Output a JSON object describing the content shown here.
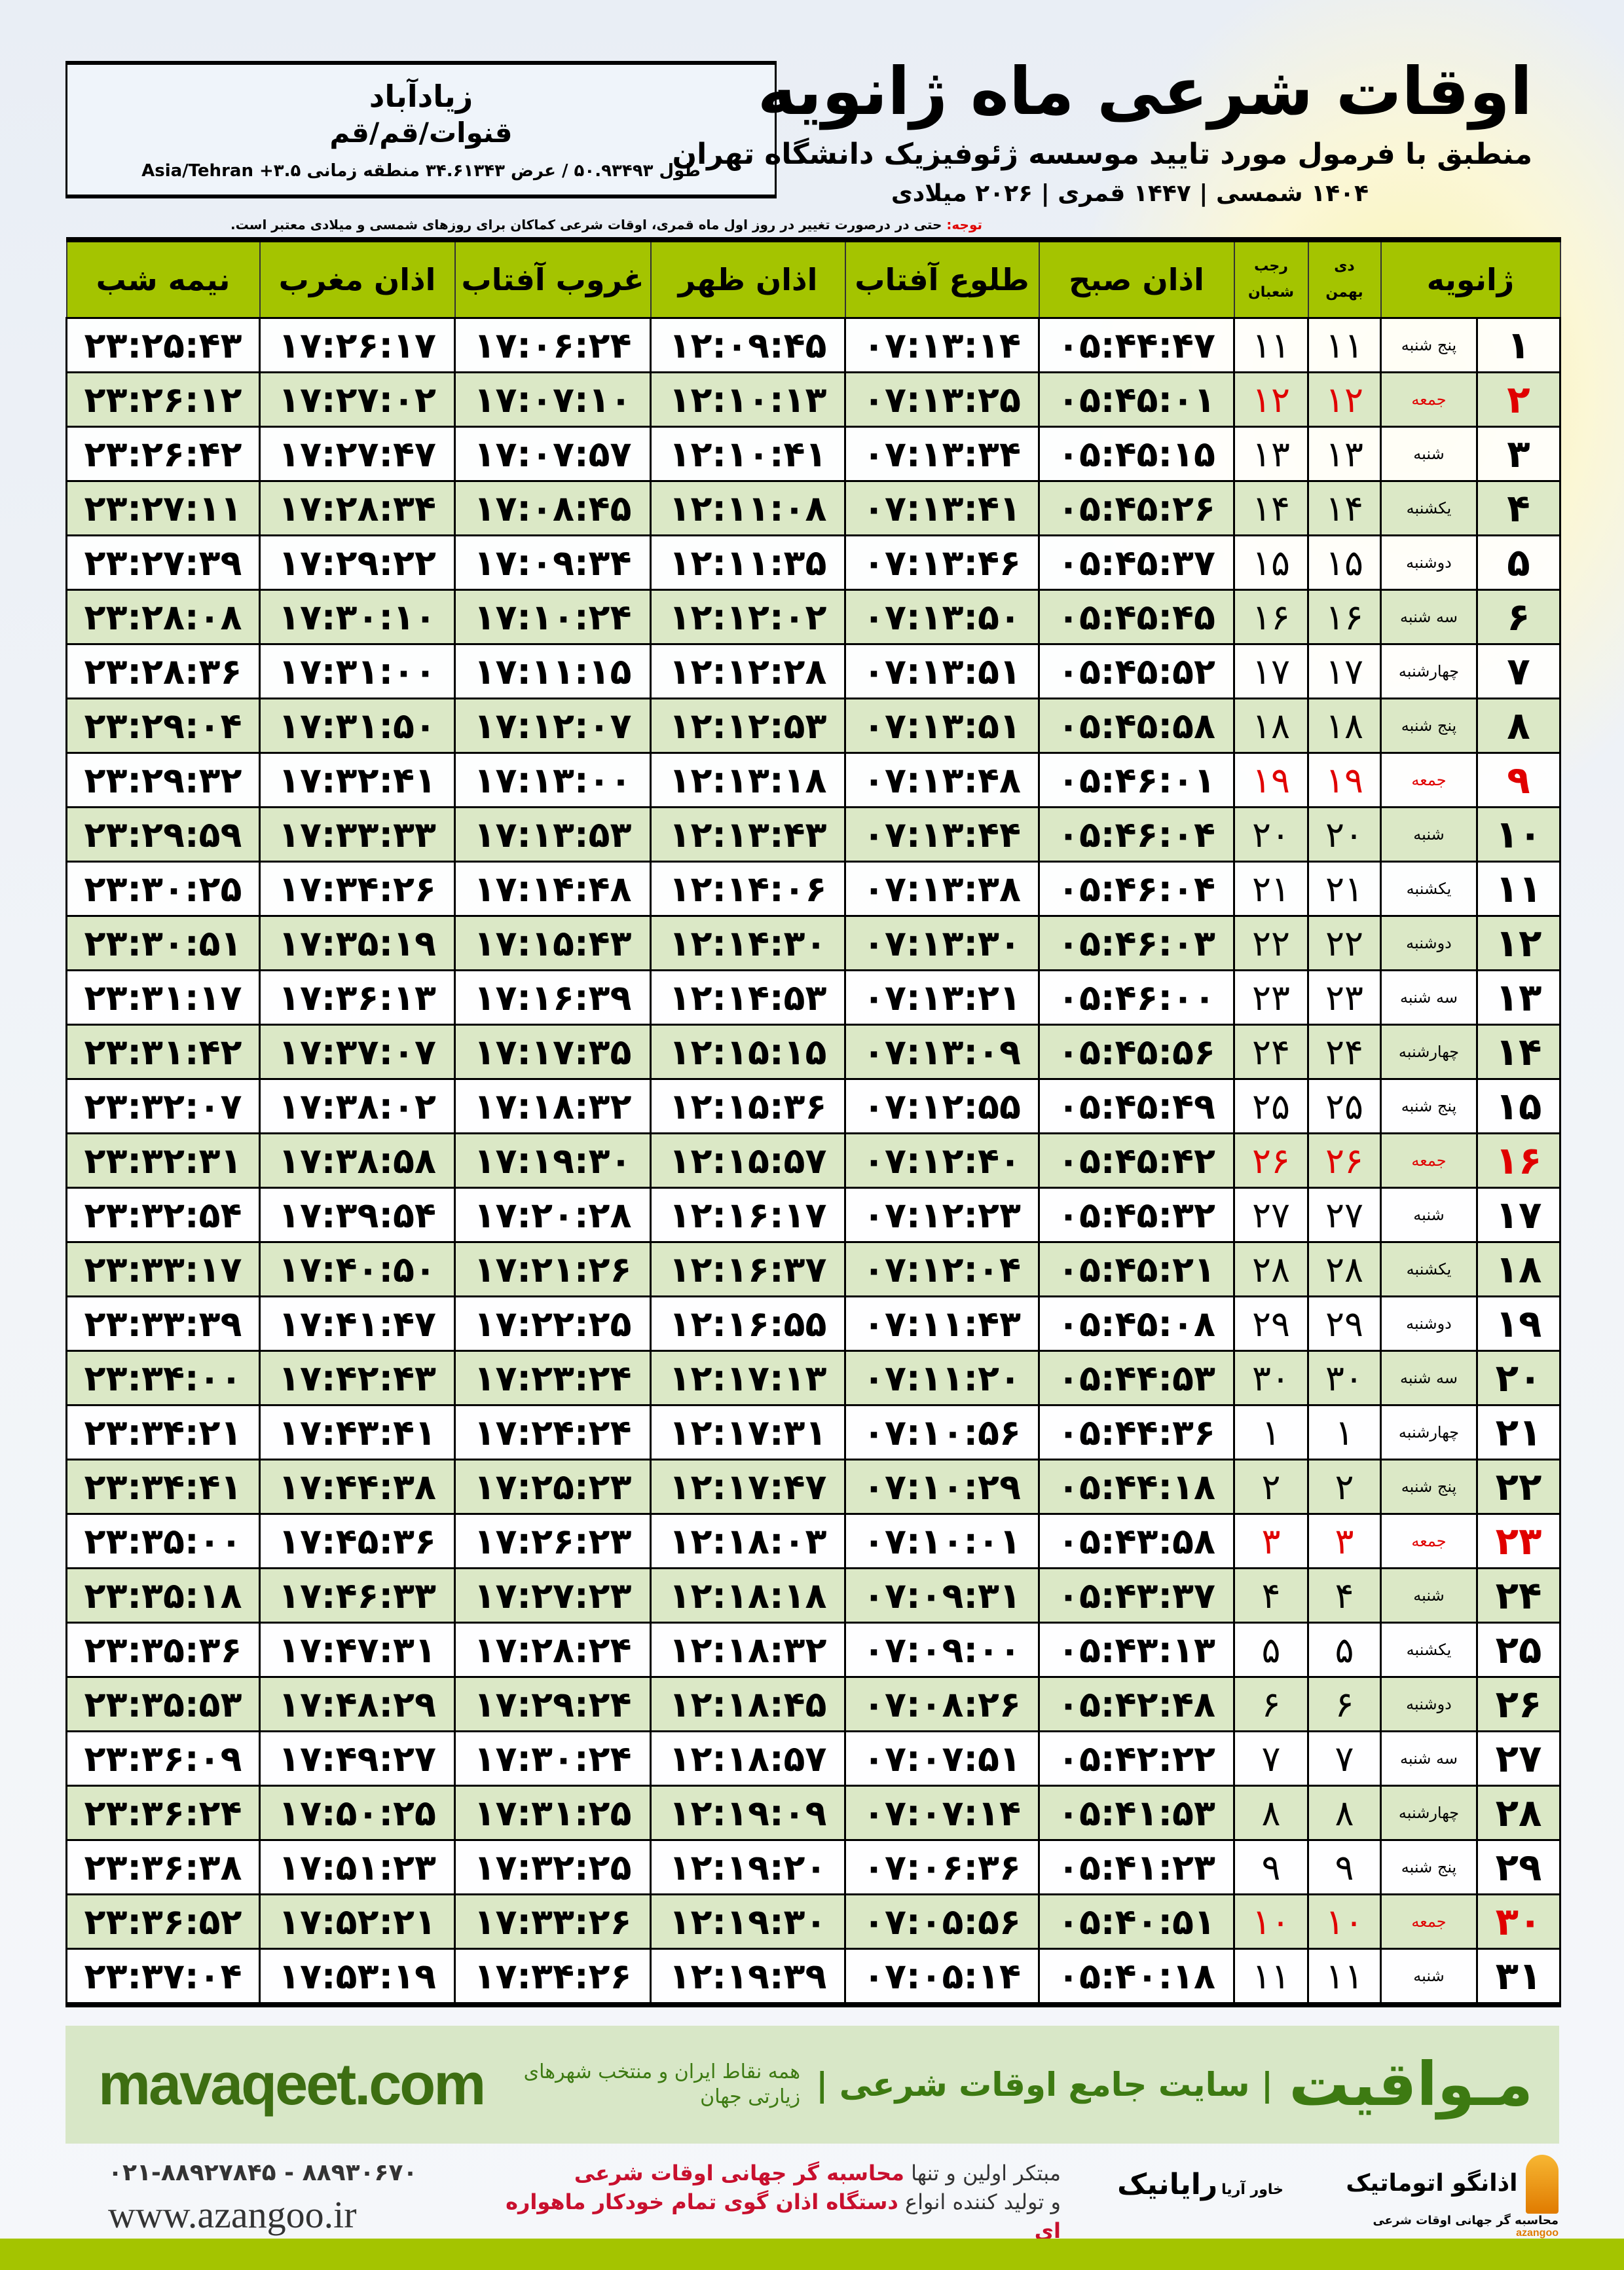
{
  "header": {
    "title": "اوقات شرعی ماه ژانویه",
    "subtitle": "منطبق با فرمول مورد تایید موسسه ژئوفیزیک دانشگاه تهران",
    "dateline": "۱۴۰۴ شمسی | ۱۴۴۷ قمری | ۲۰۲۶ میلادی"
  },
  "location": {
    "city": "زیادآباد",
    "region": "قنوات/قم/قم",
    "coords": "طول ۵۰.۹۳۴۹۳ / عرض ۳۴.۶۱۳۴۳ منطقه زمانی ۳.۵+ Asia/Tehran"
  },
  "note": {
    "label": "توجه:",
    "text": " حتی در درصورت تغییر در روز اول ماه قمری، اوقات شرعی کماکان برای روزهای شمسی و میلادی معتبر است."
  },
  "columns": {
    "day": "ژانویه",
    "shamsi_top": "دی",
    "shamsi_bottom": "بهمن",
    "qamari_top": "رجب",
    "qamari_bottom": "شعبان",
    "sobh": "اذان صبح",
    "tolu": "طلوع آفتاب",
    "zohr": "اذان ظهر",
    "ghorub": "غروب آفتاب",
    "maghreb": "اذان مغرب",
    "nime": "نیمه شب"
  },
  "colors": {
    "header_green": "#a4c400",
    "row_green": "#dbe8c6",
    "friday_red": "#e00000",
    "brand_green": "#3d7a12"
  },
  "rows": [
    [
      "۱",
      "پنج شنبه",
      "۱۱",
      "۱۱",
      "۰۵:۴۴:۴۷",
      "۰۷:۱۳:۱۴",
      "۱۲:۰۹:۴۵",
      "۱۷:۰۶:۲۴",
      "۱۷:۲۶:۱۷",
      "۲۳:۲۵:۴۳"
    ],
    [
      "۲",
      "جمعه",
      "۱۲",
      "۱۲",
      "۰۵:۴۵:۰۱",
      "۰۷:۱۳:۲۵",
      "۱۲:۱۰:۱۳",
      "۱۷:۰۷:۱۰",
      "۱۷:۲۷:۰۲",
      "۲۳:۲۶:۱۲"
    ],
    [
      "۳",
      "شنبه",
      "۱۳",
      "۱۳",
      "۰۵:۴۵:۱۵",
      "۰۷:۱۳:۳۴",
      "۱۲:۱۰:۴۱",
      "۱۷:۰۷:۵۷",
      "۱۷:۲۷:۴۷",
      "۲۳:۲۶:۴۲"
    ],
    [
      "۴",
      "یکشنبه",
      "۱۴",
      "۱۴",
      "۰۵:۴۵:۲۶",
      "۰۷:۱۳:۴۱",
      "۱۲:۱۱:۰۸",
      "۱۷:۰۸:۴۵",
      "۱۷:۲۸:۳۴",
      "۲۳:۲۷:۱۱"
    ],
    [
      "۵",
      "دوشنبه",
      "۱۵",
      "۱۵",
      "۰۵:۴۵:۳۷",
      "۰۷:۱۳:۴۶",
      "۱۲:۱۱:۳۵",
      "۱۷:۰۹:۳۴",
      "۱۷:۲۹:۲۲",
      "۲۳:۲۷:۳۹"
    ],
    [
      "۶",
      "سه شنبه",
      "۱۶",
      "۱۶",
      "۰۵:۴۵:۴۵",
      "۰۷:۱۳:۵۰",
      "۱۲:۱۲:۰۲",
      "۱۷:۱۰:۲۴",
      "۱۷:۳۰:۱۰",
      "۲۳:۲۸:۰۸"
    ],
    [
      "۷",
      "چهارشنبه",
      "۱۷",
      "۱۷",
      "۰۵:۴۵:۵۲",
      "۰۷:۱۳:۵۱",
      "۱۲:۱۲:۲۸",
      "۱۷:۱۱:۱۵",
      "۱۷:۳۱:۰۰",
      "۲۳:۲۸:۳۶"
    ],
    [
      "۸",
      "پنج شنبه",
      "۱۸",
      "۱۸",
      "۰۵:۴۵:۵۸",
      "۰۷:۱۳:۵۱",
      "۱۲:۱۲:۵۳",
      "۱۷:۱۲:۰۷",
      "۱۷:۳۱:۵۰",
      "۲۳:۲۹:۰۴"
    ],
    [
      "۹",
      "جمعه",
      "۱۹",
      "۱۹",
      "۰۵:۴۶:۰۱",
      "۰۷:۱۳:۴۸",
      "۱۲:۱۳:۱۸",
      "۱۷:۱۳:۰۰",
      "۱۷:۳۲:۴۱",
      "۲۳:۲۹:۳۲"
    ],
    [
      "۱۰",
      "شنبه",
      "۲۰",
      "۲۰",
      "۰۵:۴۶:۰۴",
      "۰۷:۱۳:۴۴",
      "۱۲:۱۳:۴۳",
      "۱۷:۱۳:۵۳",
      "۱۷:۳۳:۳۳",
      "۲۳:۲۹:۵۹"
    ],
    [
      "۱۱",
      "یکشنبه",
      "۲۱",
      "۲۱",
      "۰۵:۴۶:۰۴",
      "۰۷:۱۳:۳۸",
      "۱۲:۱۴:۰۶",
      "۱۷:۱۴:۴۸",
      "۱۷:۳۴:۲۶",
      "۲۳:۳۰:۲۵"
    ],
    [
      "۱۲",
      "دوشنبه",
      "۲۲",
      "۲۲",
      "۰۵:۴۶:۰۳",
      "۰۷:۱۳:۳۰",
      "۱۲:۱۴:۳۰",
      "۱۷:۱۵:۴۳",
      "۱۷:۳۵:۱۹",
      "۲۳:۳۰:۵۱"
    ],
    [
      "۱۳",
      "سه شنبه",
      "۲۳",
      "۲۳",
      "۰۵:۴۶:۰۰",
      "۰۷:۱۳:۲۱",
      "۱۲:۱۴:۵۳",
      "۱۷:۱۶:۳۹",
      "۱۷:۳۶:۱۳",
      "۲۳:۳۱:۱۷"
    ],
    [
      "۱۴",
      "چهارشنبه",
      "۲۴",
      "۲۴",
      "۰۵:۴۵:۵۶",
      "۰۷:۱۳:۰۹",
      "۱۲:۱۵:۱۵",
      "۱۷:۱۷:۳۵",
      "۱۷:۳۷:۰۷",
      "۲۳:۳۱:۴۲"
    ],
    [
      "۱۵",
      "پنج شنبه",
      "۲۵",
      "۲۵",
      "۰۵:۴۵:۴۹",
      "۰۷:۱۲:۵۵",
      "۱۲:۱۵:۳۶",
      "۱۷:۱۸:۳۲",
      "۱۷:۳۸:۰۲",
      "۲۳:۳۲:۰۷"
    ],
    [
      "۱۶",
      "جمعه",
      "۲۶",
      "۲۶",
      "۰۵:۴۵:۴۲",
      "۰۷:۱۲:۴۰",
      "۱۲:۱۵:۵۷",
      "۱۷:۱۹:۳۰",
      "۱۷:۳۸:۵۸",
      "۲۳:۳۲:۳۱"
    ],
    [
      "۱۷",
      "شنبه",
      "۲۷",
      "۲۷",
      "۰۵:۴۵:۳۲",
      "۰۷:۱۲:۲۳",
      "۱۲:۱۶:۱۷",
      "۱۷:۲۰:۲۸",
      "۱۷:۳۹:۵۴",
      "۲۳:۳۲:۵۴"
    ],
    [
      "۱۸",
      "یکشنبه",
      "۲۸",
      "۲۸",
      "۰۵:۴۵:۲۱",
      "۰۷:۱۲:۰۴",
      "۱۲:۱۶:۳۷",
      "۱۷:۲۱:۲۶",
      "۱۷:۴۰:۵۰",
      "۲۳:۳۳:۱۷"
    ],
    [
      "۱۹",
      "دوشنبه",
      "۲۹",
      "۲۹",
      "۰۵:۴۵:۰۸",
      "۰۷:۱۱:۴۳",
      "۱۲:۱۶:۵۵",
      "۱۷:۲۲:۲۵",
      "۱۷:۴۱:۴۷",
      "۲۳:۳۳:۳۹"
    ],
    [
      "۲۰",
      "سه شنبه",
      "۳۰",
      "۳۰",
      "۰۵:۴۴:۵۳",
      "۰۷:۱۱:۲۰",
      "۱۲:۱۷:۱۳",
      "۱۷:۲۳:۲۴",
      "۱۷:۴۲:۴۳",
      "۲۳:۳۴:۰۰"
    ],
    [
      "۲۱",
      "چهارشنبه",
      "۱",
      "۱",
      "۰۵:۴۴:۳۶",
      "۰۷:۱۰:۵۶",
      "۱۲:۱۷:۳۱",
      "۱۷:۲۴:۲۴",
      "۱۷:۴۳:۴۱",
      "۲۳:۳۴:۲۱"
    ],
    [
      "۲۲",
      "پنج شنبه",
      "۲",
      "۲",
      "۰۵:۴۴:۱۸",
      "۰۷:۱۰:۲۹",
      "۱۲:۱۷:۴۷",
      "۱۷:۲۵:۲۳",
      "۱۷:۴۴:۳۸",
      "۲۳:۳۴:۴۱"
    ],
    [
      "۲۳",
      "جمعه",
      "۳",
      "۳",
      "۰۵:۴۳:۵۸",
      "۰۷:۱۰:۰۱",
      "۱۲:۱۸:۰۳",
      "۱۷:۲۶:۲۳",
      "۱۷:۴۵:۳۶",
      "۲۳:۳۵:۰۰"
    ],
    [
      "۲۴",
      "شنبه",
      "۴",
      "۴",
      "۰۵:۴۳:۳۷",
      "۰۷:۰۹:۳۱",
      "۱۲:۱۸:۱۸",
      "۱۷:۲۷:۲۳",
      "۱۷:۴۶:۳۳",
      "۲۳:۳۵:۱۸"
    ],
    [
      "۲۵",
      "یکشنبه",
      "۵",
      "۵",
      "۰۵:۴۳:۱۳",
      "۰۷:۰۹:۰۰",
      "۱۲:۱۸:۳۲",
      "۱۷:۲۸:۲۴",
      "۱۷:۴۷:۳۱",
      "۲۳:۳۵:۳۶"
    ],
    [
      "۲۶",
      "دوشنبه",
      "۶",
      "۶",
      "۰۵:۴۲:۴۸",
      "۰۷:۰۸:۲۶",
      "۱۲:۱۸:۴۵",
      "۱۷:۲۹:۲۴",
      "۱۷:۴۸:۲۹",
      "۲۳:۳۵:۵۳"
    ],
    [
      "۲۷",
      "سه شنبه",
      "۷",
      "۷",
      "۰۵:۴۲:۲۲",
      "۰۷:۰۷:۵۱",
      "۱۲:۱۸:۵۷",
      "۱۷:۳۰:۲۴",
      "۱۷:۴۹:۲۷",
      "۲۳:۳۶:۰۹"
    ],
    [
      "۲۸",
      "چهارشنبه",
      "۸",
      "۸",
      "۰۵:۴۱:۵۳",
      "۰۷:۰۷:۱۴",
      "۱۲:۱۹:۰۹",
      "۱۷:۳۱:۲۵",
      "۱۷:۵۰:۲۵",
      "۲۳:۳۶:۲۴"
    ],
    [
      "۲۹",
      "پنج شنبه",
      "۹",
      "۹",
      "۰۵:۴۱:۲۳",
      "۰۷:۰۶:۳۶",
      "۱۲:۱۹:۲۰",
      "۱۷:۳۲:۲۵",
      "۱۷:۵۱:۲۳",
      "۲۳:۳۶:۳۸"
    ],
    [
      "۳۰",
      "جمعه",
      "۱۰",
      "۱۰",
      "۰۵:۴۰:۵۱",
      "۰۷:۰۵:۵۶",
      "۱۲:۱۹:۳۰",
      "۱۷:۳۳:۲۶",
      "۱۷:۵۲:۲۱",
      "۲۳:۳۶:۵۲"
    ],
    [
      "۳۱",
      "شنبه",
      "۱۱",
      "۱۱",
      "۰۵:۴۰:۱۸",
      "۰۷:۰۵:۱۴",
      "۱۲:۱۹:۳۹",
      "۱۷:۳۴:۲۶",
      "۱۷:۵۳:۱۹",
      "۲۳:۳۷:۰۴"
    ]
  ],
  "friday_label": "جمعه",
  "band": {
    "brand": "مـواقیت",
    "slogan": "| سایت جامع اوقات شرعی |",
    "slogan2": "همه نقاط ایران و منتخب شهرهای زیارتی جهان",
    "site": "mavaqeet.com"
  },
  "footer": {
    "phone": "۰۲۱-۸۸۹۲۷۸۴۵ - ۸۸۹۳۰۶۷۰",
    "web": "www.azangoo.ir",
    "promo1a": "مبتکر اولین و تنها ",
    "promo1b": "محاسبه گر جهانی اوقات شرعی",
    "promo2a": "و تولید کننده انواع ",
    "promo2b": "دستگاه اذان گوی تمام خودکار ماهواره ای",
    "logo1": "اذانگو اتوماتیک",
    "logo1_sub": "محاسبه گر جهانی اوقات شرعی",
    "logo1_en": "azangoo",
    "logo2": "رایانیک",
    "logo2_sub": "خاور آریا"
  }
}
